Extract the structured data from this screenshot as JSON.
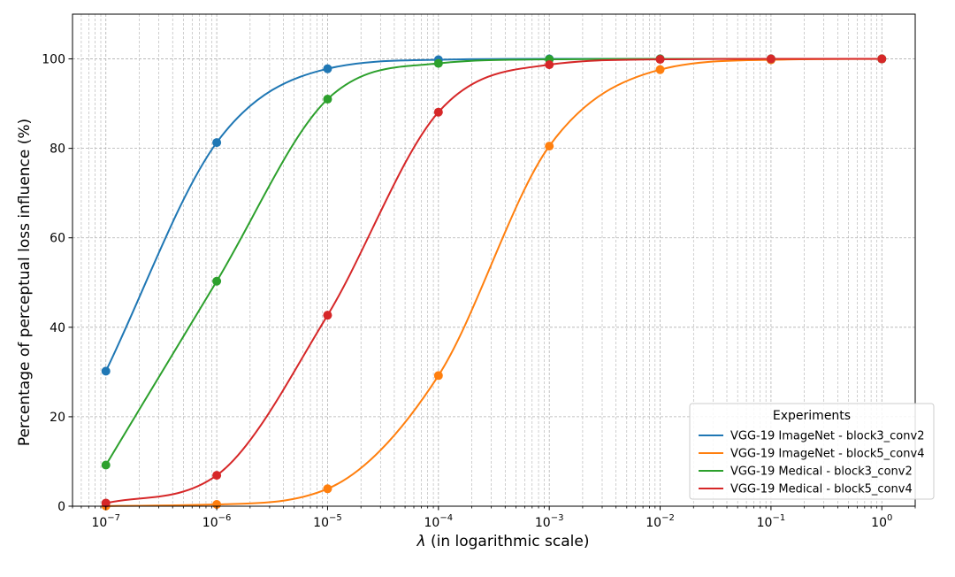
{
  "chart_data": {
    "type": "line",
    "xscale": "log",
    "xlim": [
      5e-08,
      2
    ],
    "ylim": [
      0,
      110
    ],
    "x": [
      1e-07,
      1e-06,
      1e-05,
      0.0001,
      0.001,
      0.01,
      0.1,
      1
    ],
    "x_tick_labels": [
      {
        "base": "10",
        "exp": "−7"
      },
      {
        "base": "10",
        "exp": "−6"
      },
      {
        "base": "10",
        "exp": "−5"
      },
      {
        "base": "10",
        "exp": "−4"
      },
      {
        "base": "10",
        "exp": "−3"
      },
      {
        "base": "10",
        "exp": "−2"
      },
      {
        "base": "10",
        "exp": "−1"
      },
      {
        "base": "10",
        "exp": "0"
      }
    ],
    "y_ticks": [
      0,
      20,
      40,
      60,
      80,
      100
    ],
    "y_tick_labels": [
      "0",
      "20",
      "40",
      "60",
      "80",
      "100"
    ],
    "xlabel_symbol": "λ",
    "xlabel_text": " (in logarithmic scale)",
    "ylabel": "Percentage of perceptual loss influence (%)",
    "grid": true,
    "legend_title": "Experiments",
    "legend_position": "lower-right",
    "series": [
      {
        "name": "VGG-19 ImageNet - block3_conv2",
        "color": "#1f77b4",
        "values": [
          30.2,
          81.3,
          97.8,
          99.8,
          100.0,
          100.0,
          100.0,
          100.0
        ]
      },
      {
        "name": "VGG-19 ImageNet - block5_conv4",
        "color": "#ff7f0e",
        "values": [
          0.05,
          0.4,
          3.9,
          29.2,
          80.5,
          97.6,
          99.8,
          100.0
        ]
      },
      {
        "name": "VGG-19 Medical - block3_conv2",
        "color": "#2ca02c",
        "values": [
          9.2,
          50.3,
          91.0,
          99.0,
          99.9,
          100.0,
          100.0,
          100.0
        ]
      },
      {
        "name": "VGG-19 Medical - block5_conv4",
        "color": "#d62728",
        "values": [
          0.7,
          6.9,
          42.7,
          88.1,
          98.7,
          99.9,
          100.0,
          100.0
        ]
      }
    ]
  }
}
